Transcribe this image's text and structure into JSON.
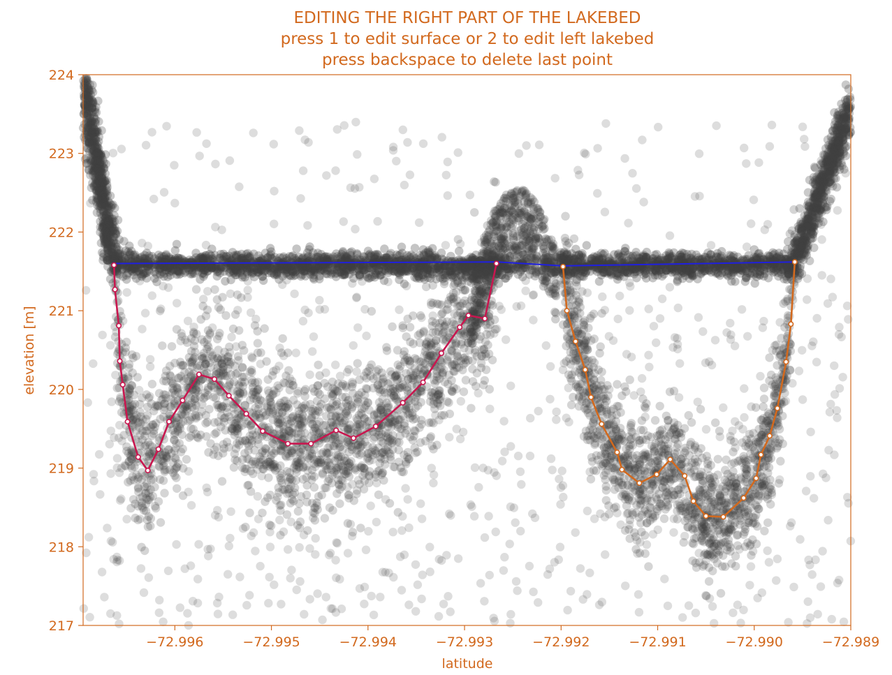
{
  "chart_data": {
    "type": "scatter",
    "title_lines": [
      "EDITING THE RIGHT PART OF THE LAKEBED",
      "press 1 to edit surface or 2 to edit left lakebed",
      "press backspace to delete last point"
    ],
    "xlabel": "latitude",
    "ylabel": "elevation [m]",
    "xlim": [
      -72.99695,
      -72.989
    ],
    "ylim": [
      217,
      224
    ],
    "xticks": [
      -72.996,
      -72.995,
      -72.994,
      -72.993,
      -72.992,
      -72.991,
      -72.99,
      -72.989
    ],
    "xtick_labels": [
      "−72.996",
      "−72.995",
      "−72.994",
      "−72.993",
      "−72.992",
      "−72.991",
      "−72.990",
      "−72.989"
    ],
    "yticks": [
      217,
      218,
      219,
      220,
      221,
      222,
      223,
      224
    ],
    "ytick_labels": [
      "217",
      "218",
      "219",
      "220",
      "221",
      "222",
      "223",
      "224"
    ],
    "grid": false,
    "colors": {
      "accent": "#d2691e",
      "scatter": "#404040",
      "surface": "#1f1fe0",
      "left_lakebed": "#c8174f",
      "right_lakebed": "#d2691e"
    },
    "series": [
      {
        "role": "surface",
        "x": [
          -72.99663,
          -72.99266,
          -72.99198,
          -72.98957
        ],
        "y": [
          221.6,
          221.62,
          221.57,
          221.62
        ]
      },
      {
        "role": "left_lakebed",
        "x": [
          -72.99663,
          -72.99662,
          -72.99658,
          -72.99657,
          -72.99654,
          -72.99649,
          -72.99638,
          -72.99628,
          -72.99617,
          -72.99606,
          -72.99592,
          -72.99575,
          -72.99559,
          -72.99544,
          -72.99526,
          -72.99509,
          -72.99483,
          -72.99459,
          -72.99433,
          -72.99415,
          -72.99392,
          -72.99364,
          -72.99343,
          -72.99324,
          -72.99305,
          -72.99296,
          -72.99279,
          -72.99267
        ],
        "y": [
          221.58,
          221.27,
          220.81,
          220.36,
          220.06,
          219.59,
          219.14,
          218.97,
          219.24,
          219.59,
          219.86,
          220.19,
          220.13,
          219.92,
          219.69,
          219.47,
          219.31,
          219.31,
          219.48,
          219.38,
          219.53,
          219.83,
          220.09,
          220.46,
          220.79,
          220.94,
          220.9,
          221.6
        ]
      },
      {
        "role": "right_lakebed",
        "x": [
          -72.99198,
          -72.99194,
          -72.99185,
          -72.99175,
          -72.99169,
          -72.99158,
          -72.99142,
          -72.99137,
          -72.99119,
          -72.99101,
          -72.99087,
          -72.99072,
          -72.99063,
          -72.9905,
          -72.99032,
          -72.99011,
          -72.98998,
          -72.98993,
          -72.98984,
          -72.98976,
          -72.98967,
          -72.98962,
          -72.98958
        ],
        "y": [
          221.56,
          221.0,
          220.61,
          220.25,
          219.9,
          219.56,
          219.2,
          218.98,
          218.81,
          218.92,
          219.11,
          218.9,
          218.58,
          218.39,
          218.38,
          218.62,
          218.87,
          219.17,
          219.41,
          219.76,
          220.35,
          220.83,
          221.62
        ]
      }
    ]
  }
}
